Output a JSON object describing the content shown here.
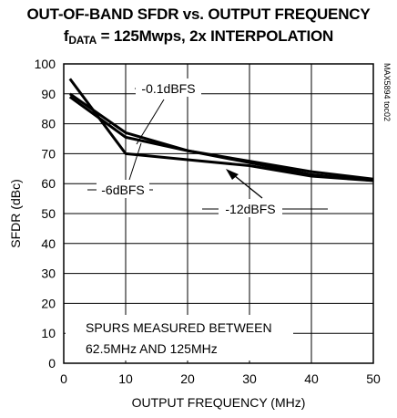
{
  "title_line1": "OUT-OF-BAND SFDR vs. OUTPUT FREQUENCY",
  "title_line2_prefix": "f",
  "title_line2_sub": "DATA",
  "title_line2_rest": " = 125Mwps, 2x INTERPOLATION",
  "side_label": "MAX5894 toc02",
  "chart_data": {
    "type": "line",
    "xlabel": "OUTPUT FREQUENCY (MHz)",
    "ylabel": "SFDR (dBc)",
    "xlim": [
      0,
      50
    ],
    "ylim": [
      0,
      100
    ],
    "xticks": [
      0,
      10,
      20,
      30,
      40,
      50
    ],
    "yticks": [
      0,
      10,
      20,
      30,
      40,
      50,
      60,
      70,
      80,
      90,
      100
    ],
    "grid": true,
    "series": [
      {
        "name": "-0.1dBFS",
        "x": [
          1,
          10,
          20,
          30,
          40,
          50
        ],
        "y": [
          90,
          77,
          71,
          67.5,
          64,
          61.5
        ]
      },
      {
        "name": "-6dBFS",
        "x": [
          1,
          10,
          20,
          30,
          40,
          50
        ],
        "y": [
          89,
          75.5,
          71,
          67,
          63,
          61
        ]
      },
      {
        "name": "-12dBFS",
        "x": [
          1,
          10,
          20,
          30,
          40,
          50
        ],
        "y": [
          95,
          70,
          68,
          66,
          62.5,
          61
        ]
      }
    ],
    "annotations": [
      "SPURS MEASURED BETWEEN",
      "62.5MHz AND 125MHz"
    ]
  }
}
